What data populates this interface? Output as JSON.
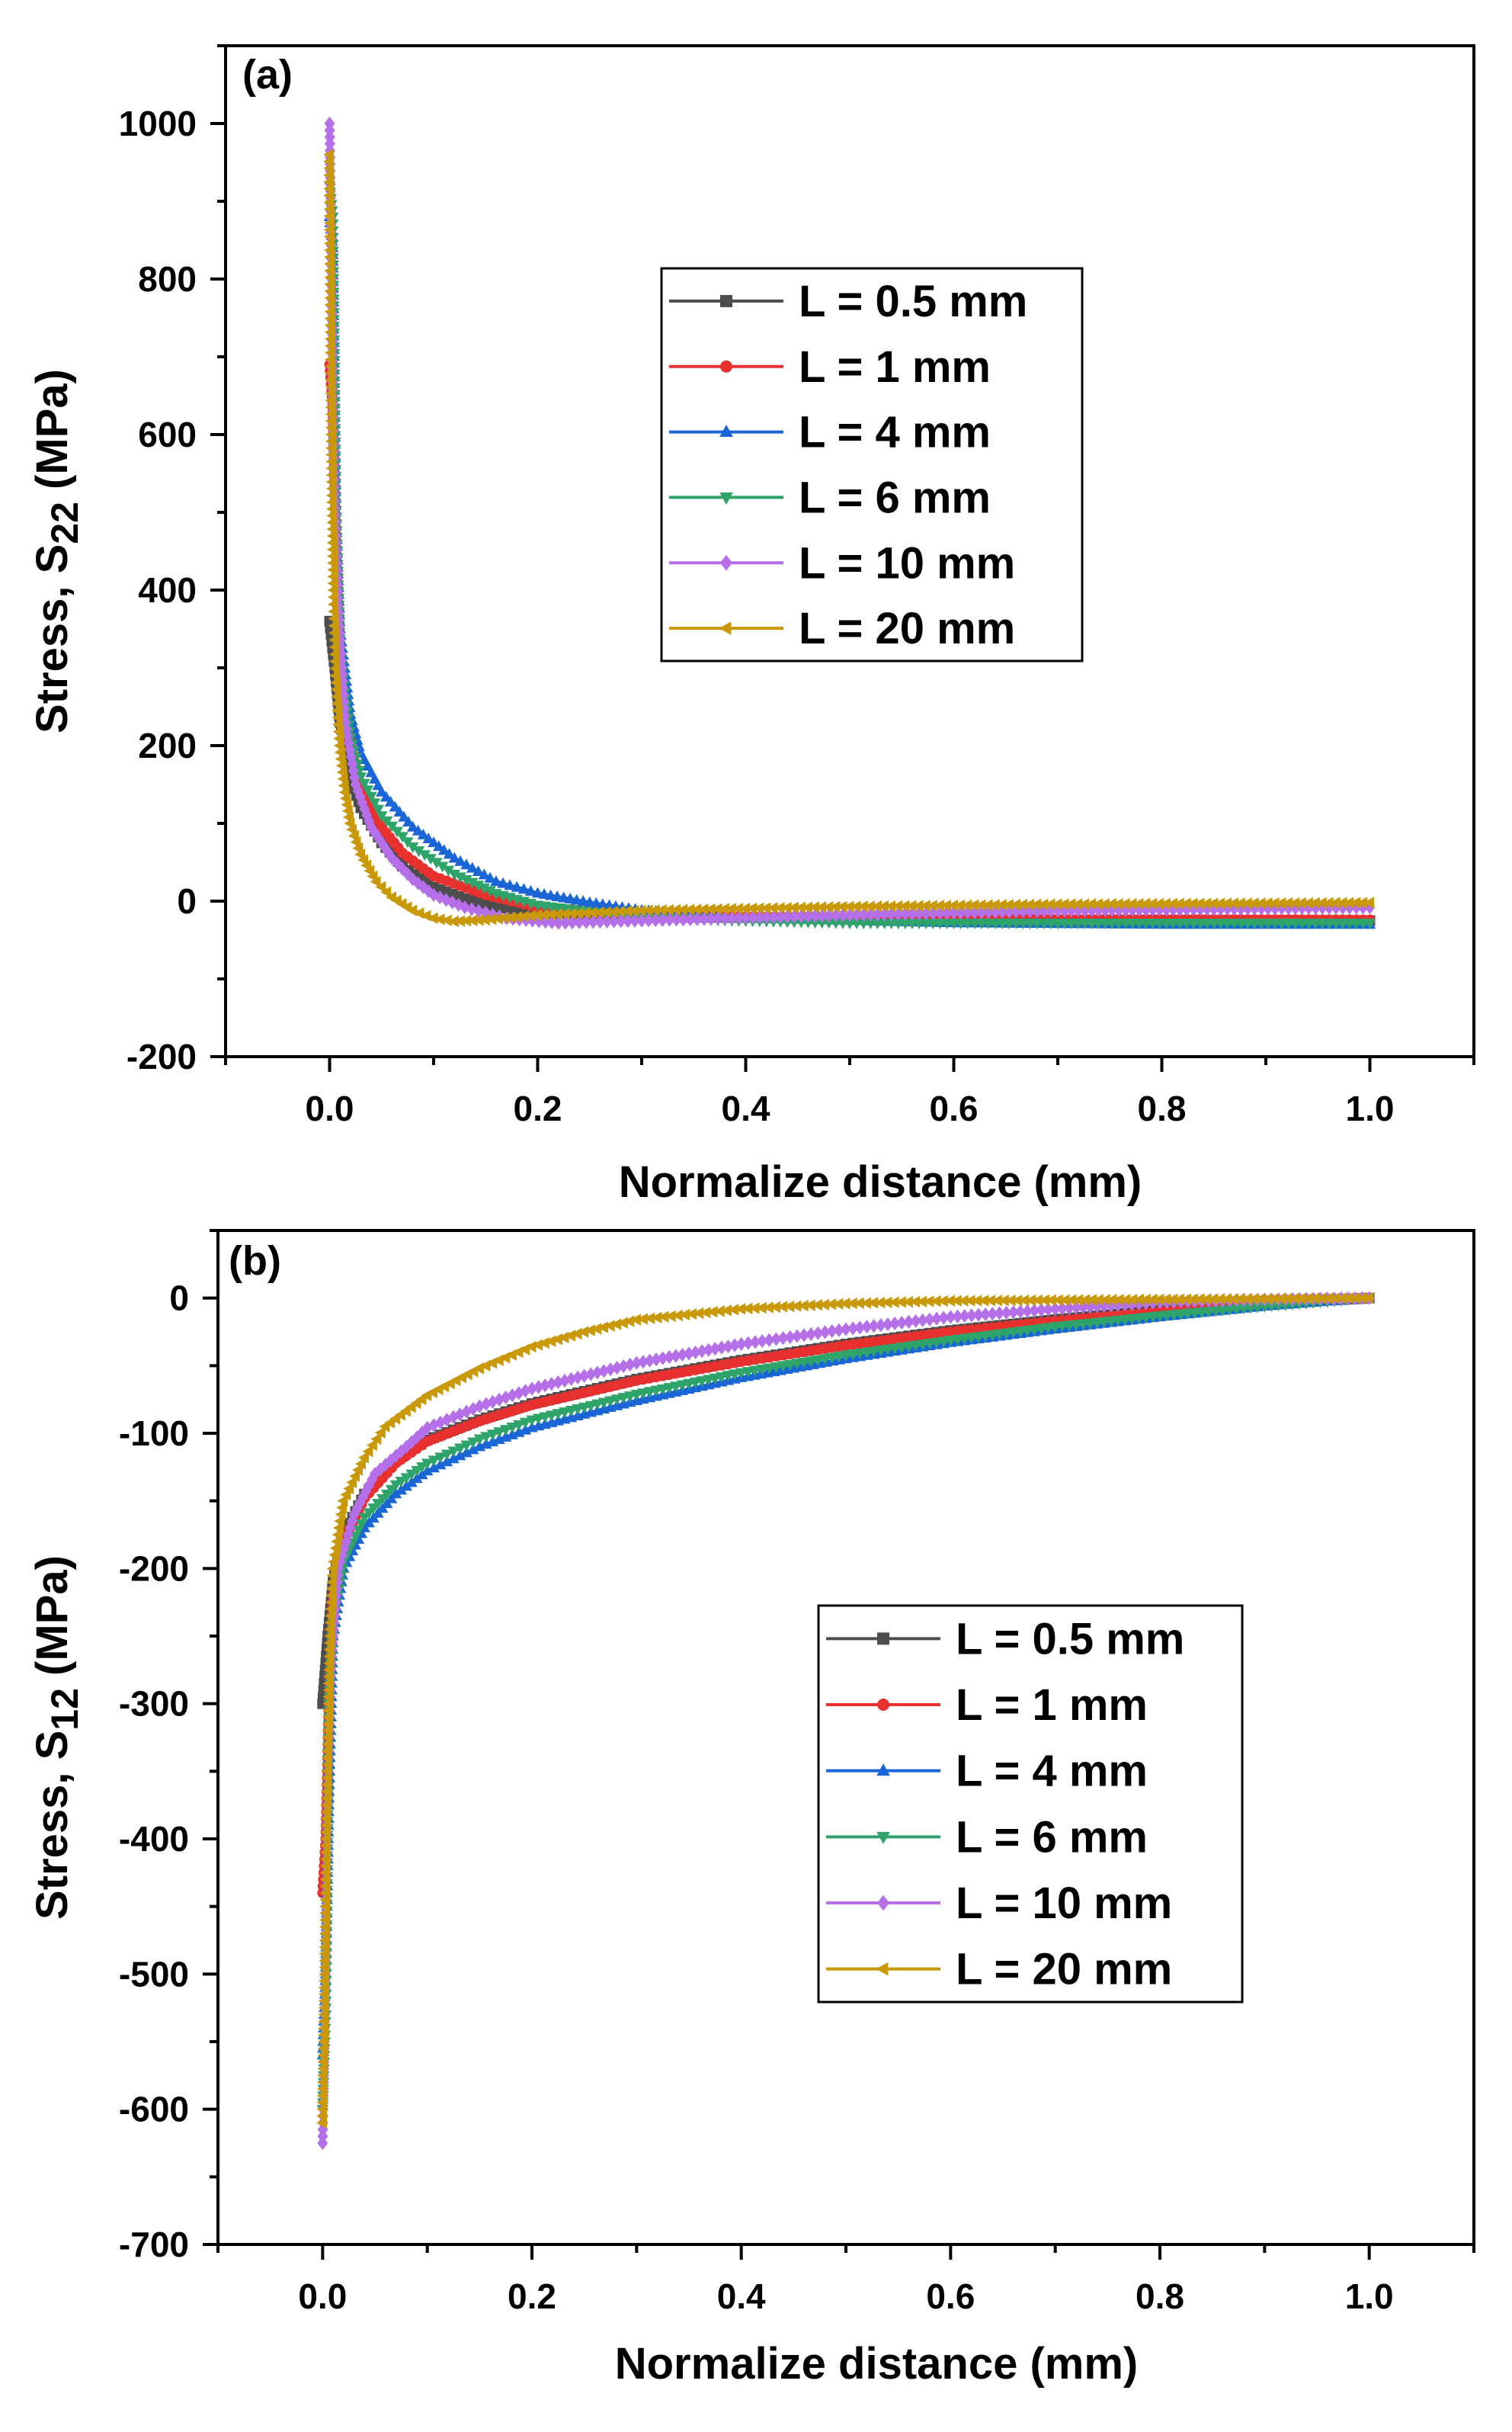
{
  "chart_data": [
    {
      "panel_label": "(a)",
      "type": "line",
      "xlabel": "Normalize distance (mm)",
      "ylabel_main": "Stress, S",
      "ylabel_sub": "22",
      "ylabel_tail": " (MPa)",
      "xlim": [
        -0.1,
        1.1
      ],
      "ylim": [
        -200,
        1100
      ],
      "xticks": [
        0.0,
        0.2,
        0.4,
        0.6,
        0.8,
        1.0
      ],
      "xtick_labels": [
        "0.0",
        "0.2",
        "0.4",
        "0.6",
        "0.8",
        "1.0"
      ],
      "yticks": [
        -200,
        0,
        200,
        400,
        600,
        800,
        1000
      ],
      "ytick_labels": [
        "-200",
        "0",
        "200",
        "400",
        "600",
        "800",
        "1000"
      ],
      "legend_position": "top-right",
      "series": [
        {
          "name": "L = 0.5 mm",
          "color": "#4d4d4d",
          "marker": "square",
          "points": [
            [
              0.0,
              360
            ],
            [
              0.005,
              300
            ],
            [
              0.01,
              230
            ],
            [
              0.02,
              160
            ],
            [
              0.03,
              120
            ],
            [
              0.05,
              75
            ],
            [
              0.07,
              45
            ],
            [
              0.1,
              18
            ],
            [
              0.13,
              3
            ],
            [
              0.16,
              -8
            ],
            [
              0.2,
              -15
            ],
            [
              0.3,
              -20
            ],
            [
              0.5,
              -22
            ],
            [
              0.7,
              -24
            ],
            [
              1.0,
              -25
            ]
          ]
        },
        {
          "name": "L = 1 mm",
          "color": "#e8312f",
          "marker": "circle",
          "points": [
            [
              0.0,
              690
            ],
            [
              0.003,
              640
            ],
            [
              0.006,
              480
            ],
            [
              0.01,
              330
            ],
            [
              0.02,
              200
            ],
            [
              0.03,
              145
            ],
            [
              0.05,
              95
            ],
            [
              0.07,
              62
            ],
            [
              0.1,
              32
            ],
            [
              0.15,
              8
            ],
            [
              0.2,
              -8
            ],
            [
              0.3,
              -18
            ],
            [
              0.5,
              -22
            ],
            [
              0.7,
              -23
            ],
            [
              1.0,
              -24
            ]
          ]
        },
        {
          "name": "L = 4 mm",
          "color": "#1a66d6",
          "marker": "triangle-up",
          "points": [
            [
              0.0,
              880
            ],
            [
              0.003,
              840
            ],
            [
              0.006,
              500
            ],
            [
              0.01,
              350
            ],
            [
              0.02,
              240
            ],
            [
              0.03,
              190
            ],
            [
              0.05,
              140
            ],
            [
              0.08,
              95
            ],
            [
              0.12,
              55
            ],
            [
              0.16,
              25
            ],
            [
              0.2,
              10
            ],
            [
              0.25,
              -2
            ],
            [
              0.3,
              -12
            ],
            [
              0.4,
              -22
            ],
            [
              0.6,
              -28
            ],
            [
              0.8,
              -30
            ],
            [
              1.0,
              -30
            ]
          ]
        },
        {
          "name": "L = 6 mm",
          "color": "#2ea36a",
          "marker": "triangle-down",
          "points": [
            [
              0.0,
              920
            ],
            [
              0.003,
              880
            ],
            [
              0.006,
              520
            ],
            [
              0.01,
              320
            ],
            [
              0.02,
              210
            ],
            [
              0.03,
              160
            ],
            [
              0.05,
              110
            ],
            [
              0.08,
              70
            ],
            [
              0.12,
              35
            ],
            [
              0.16,
              10
            ],
            [
              0.2,
              -5
            ],
            [
              0.3,
              -22
            ],
            [
              0.5,
              -28
            ],
            [
              0.7,
              -28
            ],
            [
              1.0,
              -28
            ]
          ]
        },
        {
          "name": "L = 10 mm",
          "color": "#b56fe8",
          "marker": "diamond",
          "points": [
            [
              0.0,
              1000
            ],
            [
              0.002,
              800
            ],
            [
              0.004,
              560
            ],
            [
              0.008,
              380
            ],
            [
              0.015,
              230
            ],
            [
              0.025,
              150
            ],
            [
              0.04,
              95
            ],
            [
              0.06,
              55
            ],
            [
              0.08,
              28
            ],
            [
              0.1,
              8
            ],
            [
              0.13,
              -8
            ],
            [
              0.17,
              -22
            ],
            [
              0.22,
              -28
            ],
            [
              0.3,
              -25
            ],
            [
              0.5,
              -18
            ],
            [
              0.7,
              -12
            ],
            [
              1.0,
              -8
            ]
          ]
        },
        {
          "name": "L = 20 mm",
          "color": "#c9990a",
          "marker": "triangle-left",
          "points": [
            [
              0.0,
              960
            ],
            [
              0.002,
              600
            ],
            [
              0.004,
              400
            ],
            [
              0.006,
              290
            ],
            [
              0.01,
              200
            ],
            [
              0.015,
              140
            ],
            [
              0.02,
              100
            ],
            [
              0.03,
              60
            ],
            [
              0.045,
              25
            ],
            [
              0.06,
              5
            ],
            [
              0.08,
              -12
            ],
            [
              0.1,
              -22
            ],
            [
              0.12,
              -26
            ],
            [
              0.15,
              -24
            ],
            [
              0.2,
              -18
            ],
            [
              0.3,
              -12
            ],
            [
              0.5,
              -7
            ],
            [
              0.7,
              -4
            ],
            [
              1.0,
              -2
            ]
          ]
        }
      ]
    },
    {
      "panel_label": "(b)",
      "type": "line",
      "xlabel": "Normalize distance (mm)",
      "ylabel_main": "Stress, S",
      "ylabel_sub": "12",
      "ylabel_tail": " (MPa)",
      "xlim": [
        -0.1,
        1.1
      ],
      "ylim": [
        -700,
        50
      ],
      "xticks": [
        0.0,
        0.2,
        0.4,
        0.6,
        0.8,
        1.0
      ],
      "xtick_labels": [
        "0.0",
        "0.2",
        "0.4",
        "0.6",
        "0.8",
        "1.0"
      ],
      "yticks": [
        -700,
        -600,
        -500,
        -400,
        -300,
        -200,
        -100,
        0
      ],
      "ytick_labels": [
        "-700",
        "-600",
        "-500",
        "-400",
        "-300",
        "-200",
        "-100",
        "0"
      ],
      "legend_position": "right",
      "series": [
        {
          "name": "L = 0.5 mm",
          "color": "#4d4d4d",
          "marker": "square",
          "points": [
            [
              0.0,
              -300
            ],
            [
              0.005,
              -250
            ],
            [
              0.01,
              -210
            ],
            [
              0.02,
              -175
            ],
            [
              0.04,
              -145
            ],
            [
              0.07,
              -120
            ],
            [
              0.1,
              -105
            ],
            [
              0.15,
              -90
            ],
            [
              0.2,
              -78
            ],
            [
              0.3,
              -60
            ],
            [
              0.4,
              -46
            ],
            [
              0.5,
              -34
            ],
            [
              0.6,
              -24
            ],
            [
              0.7,
              -16
            ],
            [
              0.8,
              -9
            ],
            [
              0.9,
              -4
            ],
            [
              1.0,
              0
            ]
          ]
        },
        {
          "name": "L = 1 mm",
          "color": "#e8312f",
          "marker": "circle",
          "points": [
            [
              0.0,
              -440
            ],
            [
              0.003,
              -400
            ],
            [
              0.006,
              -300
            ],
            [
              0.01,
              -220
            ],
            [
              0.02,
              -180
            ],
            [
              0.04,
              -148
            ],
            [
              0.07,
              -122
            ],
            [
              0.1,
              -106
            ],
            [
              0.15,
              -91
            ],
            [
              0.2,
              -79
            ],
            [
              0.3,
              -61
            ],
            [
              0.4,
              -47
            ],
            [
              0.5,
              -35
            ],
            [
              0.6,
              -25
            ],
            [
              0.7,
              -17
            ],
            [
              0.8,
              -10
            ],
            [
              0.9,
              -4
            ],
            [
              1.0,
              0
            ]
          ]
        },
        {
          "name": "L = 4 mm",
          "color": "#1a66d6",
          "marker": "triangle-up",
          "points": [
            [
              0.0,
              -560
            ],
            [
              0.003,
              -500
            ],
            [
              0.006,
              -370
            ],
            [
              0.01,
              -250
            ],
            [
              0.02,
              -200
            ],
            [
              0.04,
              -170
            ],
            [
              0.07,
              -145
            ],
            [
              0.1,
              -128
            ],
            [
              0.15,
              -110
            ],
            [
              0.2,
              -96
            ],
            [
              0.3,
              -76
            ],
            [
              0.4,
              -59
            ],
            [
              0.5,
              -45
            ],
            [
              0.6,
              -33
            ],
            [
              0.7,
              -23
            ],
            [
              0.8,
              -14
            ],
            [
              0.9,
              -6
            ],
            [
              1.0,
              0
            ]
          ]
        },
        {
          "name": "L = 6 mm",
          "color": "#2ea36a",
          "marker": "triangle-down",
          "points": [
            [
              0.0,
              -600
            ],
            [
              0.003,
              -530
            ],
            [
              0.006,
              -300
            ],
            [
              0.01,
              -240
            ],
            [
              0.02,
              -195
            ],
            [
              0.04,
              -162
            ],
            [
              0.07,
              -138
            ],
            [
              0.1,
              -122
            ],
            [
              0.15,
              -104
            ],
            [
              0.2,
              -90
            ],
            [
              0.3,
              -71
            ],
            [
              0.4,
              -55
            ],
            [
              0.5,
              -42
            ],
            [
              0.6,
              -31
            ],
            [
              0.7,
              -21
            ],
            [
              0.8,
              -13
            ],
            [
              0.9,
              -6
            ],
            [
              1.0,
              0
            ]
          ]
        },
        {
          "name": "L = 10 mm",
          "color": "#b56fe8",
          "marker": "diamond",
          "points": [
            [
              0.0,
              -625
            ],
            [
              0.002,
              -540
            ],
            [
              0.004,
              -390
            ],
            [
              0.008,
              -270
            ],
            [
              0.015,
              -200
            ],
            [
              0.03,
              -160
            ],
            [
              0.05,
              -130
            ],
            [
              0.08,
              -110
            ],
            [
              0.1,
              -96
            ],
            [
              0.15,
              -80
            ],
            [
              0.2,
              -67
            ],
            [
              0.3,
              -48
            ],
            [
              0.4,
              -34
            ],
            [
              0.5,
              -23
            ],
            [
              0.6,
              -14
            ],
            [
              0.7,
              -8
            ],
            [
              0.8,
              -3
            ],
            [
              0.9,
              -1
            ],
            [
              1.0,
              0
            ]
          ]
        },
        {
          "name": "L = 20 mm",
          "color": "#c9990a",
          "marker": "triangle-left",
          "points": [
            [
              0.0,
              -610
            ],
            [
              0.002,
              -520
            ],
            [
              0.004,
              -380
            ],
            [
              0.007,
              -260
            ],
            [
              0.01,
              -200
            ],
            [
              0.02,
              -150
            ],
            [
              0.04,
              -118
            ],
            [
              0.06,
              -95
            ],
            [
              0.1,
              -72
            ],
            [
              0.15,
              -52
            ],
            [
              0.2,
              -36
            ],
            [
              0.25,
              -25
            ],
            [
              0.3,
              -16
            ],
            [
              0.4,
              -8
            ],
            [
              0.5,
              -4
            ],
            [
              0.6,
              -2
            ],
            [
              0.8,
              -1
            ],
            [
              1.0,
              0
            ]
          ]
        }
      ]
    }
  ]
}
